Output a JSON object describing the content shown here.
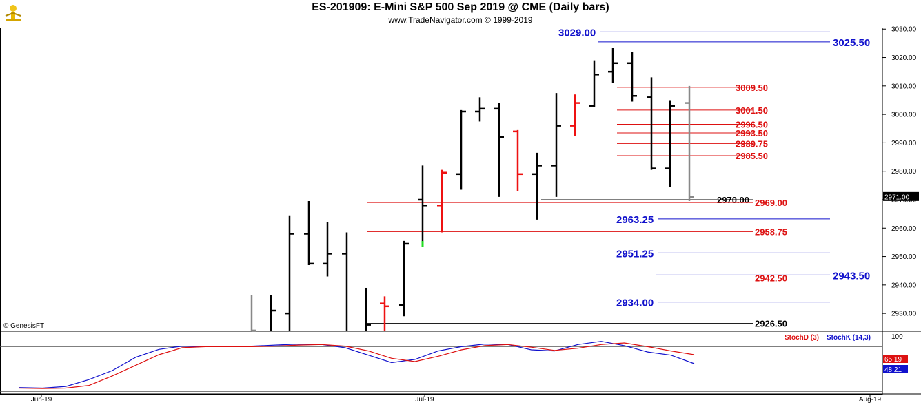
{
  "header": {
    "title": "ES-201909:  E-Mini S&P 500 Sep 2019 @ CME  (Daily bars)",
    "subtitle": "www.TradeNavigator.com © 1999-2019"
  },
  "copyright": "© GenesisFT",
  "colors": {
    "up_bar": "#000000",
    "down_bar": "#ee1111",
    "blue_level": "#1111cc",
    "red_level": "#dd1111",
    "stoch_k": "#1111cc",
    "stoch_d": "#dd1111",
    "last_bar": "#888888",
    "green_mark": "#22dd22"
  },
  "chart_data": [
    {
      "type": "ohlc",
      "symbol": "ES-201909",
      "timeframe": "Daily bars",
      "x_axis_labels": [
        "Jun-19",
        "Jul-19",
        "Aug-19"
      ],
      "ylim": [
        2921,
        3033
      ],
      "y_ticks": [
        "2930.00",
        "2940.00",
        "2950.00",
        "2960.00",
        "2970.00",
        "2980.00",
        "2990.00",
        "3000.00",
        "3010.00",
        "3020.00",
        "3030.00"
      ],
      "last_price": "2971.00",
      "bars": [
        {
          "o": 2921,
          "h": 2936.5,
          "l": 2921,
          "c": 2924,
          "color": "gray"
        },
        {
          "o": 2921,
          "h": 2936.5,
          "l": 2921,
          "c": 2931,
          "color": "black"
        },
        {
          "o": 2930,
          "h": 2964.5,
          "l": 2921,
          "c": 2958,
          "color": "black"
        },
        {
          "o": 2958,
          "h": 2969.5,
          "l": 2947,
          "c": 2947.5,
          "color": "black"
        },
        {
          "o": 2947.5,
          "h": 2962,
          "l": 2943,
          "c": 2951,
          "color": "black"
        },
        {
          "o": 2951,
          "h": 2958.5,
          "l": 2921,
          "c": 2923,
          "color": "black"
        },
        {
          "o": 2923,
          "h": 2939,
          "l": 2921,
          "c": 2926,
          "color": "black"
        },
        {
          "o": 2933.5,
          "h": 2936,
          "l": 2922,
          "c": 2932.5,
          "color": "red"
        },
        {
          "o": 2933,
          "h": 2955.5,
          "l": 2929,
          "c": 2954.5,
          "color": "black"
        },
        {
          "o": 2970,
          "h": 2982,
          "l": 2954,
          "c": 2968,
          "color": "black",
          "green_low": true
        },
        {
          "o": 2968,
          "h": 2980.5,
          "l": 2958.5,
          "c": 2979.5,
          "color": "red"
        },
        {
          "o": 2979,
          "h": 3001.5,
          "l": 2973.5,
          "c": 3001,
          "color": "black"
        },
        {
          "o": 3001,
          "h": 3006,
          "l": 2997.5,
          "c": 3002,
          "color": "black"
        },
        {
          "o": 3002,
          "h": 3004,
          "l": 2971,
          "c": 2992,
          "color": "black"
        },
        {
          "o": 2994,
          "h": 2994.5,
          "l": 2973,
          "c": 2979,
          "color": "red"
        },
        {
          "o": 2979,
          "h": 2986.5,
          "l": 2963,
          "c": 2982,
          "color": "black"
        },
        {
          "o": 2982,
          "h": 3007.5,
          "l": 2971,
          "c": 2996,
          "color": "black"
        },
        {
          "o": 2996,
          "h": 3007,
          "l": 2992.5,
          "c": 3004,
          "color": "red"
        },
        {
          "o": 3003,
          "h": 3019,
          "l": 3002.5,
          "c": 3014,
          "color": "black"
        },
        {
          "o": 3015,
          "h": 3023.5,
          "l": 3011,
          "c": 3018,
          "color": "black"
        },
        {
          "o": 3018,
          "h": 3022,
          "l": 3004.5,
          "c": 3006.5,
          "color": "black"
        },
        {
          "o": 3006,
          "h": 3013,
          "l": 2980.5,
          "c": 2981,
          "color": "black"
        },
        {
          "o": 2981,
          "h": 3005,
          "l": 2974.5,
          "c": 3003,
          "color": "black"
        },
        {
          "o": 3004,
          "h": 3010,
          "l": 2969.5,
          "c": 2971,
          "color": "gray"
        }
      ],
      "levels": [
        {
          "price": 3029.0,
          "label": "3029.00",
          "color": "blue"
        },
        {
          "price": 3025.5,
          "label": "3025.50",
          "color": "blue"
        },
        {
          "price": 3009.5,
          "label": "3009.50",
          "color": "red"
        },
        {
          "price": 3001.5,
          "label": "3001.50",
          "color": "red"
        },
        {
          "price": 2996.5,
          "label": "2996.50",
          "color": "red"
        },
        {
          "price": 2993.5,
          "label": "2993.50",
          "color": "red"
        },
        {
          "price": 2989.75,
          "label": "2989.75",
          "color": "red"
        },
        {
          "price": 2985.5,
          "label": "2985.50",
          "color": "red"
        },
        {
          "price": 2970.0,
          "label": "2970.00",
          "color": "black"
        },
        {
          "price": 2969.0,
          "label": "2969.00",
          "color": "red"
        },
        {
          "price": 2963.25,
          "label": "2963.25",
          "color": "blue"
        },
        {
          "price": 2958.75,
          "label": "2958.75",
          "color": "red"
        },
        {
          "price": 2951.25,
          "label": "2951.25",
          "color": "blue"
        },
        {
          "price": 2943.5,
          "label": "2943.50",
          "color": "blue"
        },
        {
          "price": 2942.5,
          "label": "2942.50",
          "color": "red"
        },
        {
          "price": 2934.0,
          "label": "2934.00",
          "color": "blue"
        },
        {
          "price": 2926.5,
          "label": "2926.50",
          "color": "black"
        }
      ]
    },
    {
      "type": "line",
      "indicator": "Stochastic",
      "ylim": [
        0,
        100
      ],
      "y_tick": "100",
      "legend": [
        "StochD (3)",
        "StochK (14,3)"
      ],
      "last_d": "65.19",
      "last_k": "48.21",
      "series": [
        {
          "name": "StochK (14,3)",
          "values": [
            3,
            2,
            5,
            18,
            35,
            60,
            75,
            81,
            80,
            80,
            81,
            83,
            85,
            84,
            78,
            64,
            50,
            56,
            72,
            80,
            85,
            84,
            74,
            72,
            84,
            90,
            82,
            70,
            64,
            48
          ]
        },
        {
          "name": "StochD (3)",
          "values": [
            2,
            1,
            2,
            7,
            25,
            45,
            65,
            78,
            80,
            80,
            80,
            81,
            83,
            84,
            81,
            72,
            58,
            52,
            62,
            74,
            82,
            84,
            79,
            73,
            77,
            84,
            87,
            80,
            72,
            65
          ]
        }
      ]
    }
  ]
}
